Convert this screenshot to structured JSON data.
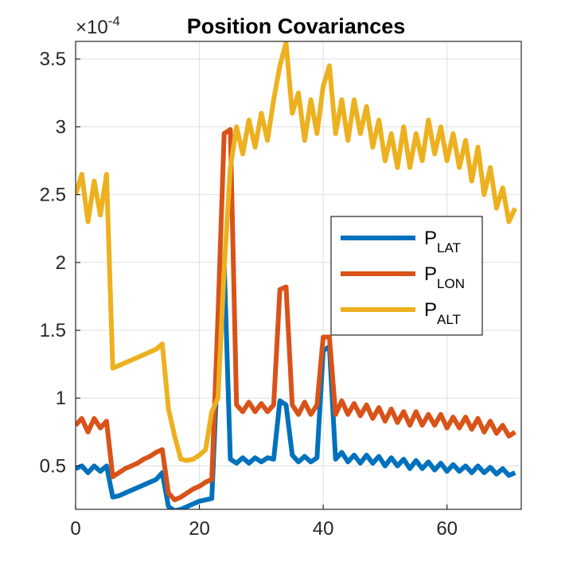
{
  "chart_data": {
    "type": "line",
    "title": "Position Covariances",
    "axis_multiplier": "×10",
    "axis_multiplier_exponent": "-4",
    "x": [
      0,
      1,
      2,
      3,
      4,
      5,
      6,
      7,
      8,
      9,
      10,
      11,
      12,
      13,
      14,
      15,
      16,
      17,
      18,
      19,
      20,
      21,
      22,
      23,
      24,
      25,
      26,
      27,
      28,
      29,
      30,
      31,
      32,
      33,
      34,
      35,
      36,
      37,
      38,
      39,
      40,
      41,
      42,
      43,
      44,
      45,
      46,
      47,
      48,
      49,
      50,
      51,
      52,
      53,
      54,
      55,
      56,
      57,
      58,
      59,
      60,
      61,
      62,
      63,
      64,
      65,
      66,
      67,
      68,
      69,
      70,
      71
    ],
    "series": [
      {
        "name": "P",
        "name_subscript": "LAT",
        "color": "#0072bd",
        "values": [
          0.48,
          0.5,
          0.45,
          0.5,
          0.46,
          0.5,
          0.27,
          0.28,
          0.3,
          0.32,
          0.34,
          0.36,
          0.38,
          0.4,
          0.45,
          0.2,
          0.17,
          0.18,
          0.2,
          0.22,
          0.24,
          0.25,
          0.26,
          1.3,
          2.0,
          0.55,
          0.52,
          0.56,
          0.52,
          0.56,
          0.53,
          0.56,
          0.55,
          0.98,
          0.95,
          0.58,
          0.53,
          0.57,
          0.53,
          0.56,
          1.35,
          1.38,
          0.55,
          0.6,
          0.53,
          0.58,
          0.52,
          0.58,
          0.52,
          0.57,
          0.5,
          0.56,
          0.5,
          0.55,
          0.48,
          0.54,
          0.48,
          0.53,
          0.47,
          0.52,
          0.46,
          0.51,
          0.46,
          0.5,
          0.45,
          0.5,
          0.45,
          0.49,
          0.44,
          0.48,
          0.43,
          0.45
        ]
      },
      {
        "name": "P",
        "name_subscript": "LON",
        "color": "#d95319",
        "values": [
          0.8,
          0.85,
          0.75,
          0.85,
          0.78,
          0.83,
          0.42,
          0.45,
          0.48,
          0.5,
          0.52,
          0.55,
          0.57,
          0.6,
          0.62,
          0.3,
          0.25,
          0.27,
          0.3,
          0.33,
          0.35,
          0.38,
          0.4,
          1.6,
          2.95,
          2.98,
          0.95,
          0.9,
          0.97,
          0.9,
          0.96,
          0.9,
          0.95,
          1.8,
          1.82,
          0.95,
          0.88,
          0.97,
          0.88,
          0.95,
          1.45,
          1.45,
          0.88,
          0.98,
          0.88,
          0.96,
          0.87,
          0.95,
          0.85,
          0.93,
          0.83,
          0.92,
          0.82,
          0.9,
          0.8,
          0.9,
          0.8,
          0.88,
          0.8,
          0.88,
          0.78,
          0.86,
          0.78,
          0.86,
          0.77,
          0.85,
          0.75,
          0.83,
          0.74,
          0.8,
          0.72,
          0.75
        ]
      },
      {
        "name": "P",
        "name_subscript": "ALT",
        "color": "#edb120",
        "values": [
          2.5,
          2.65,
          2.3,
          2.6,
          2.35,
          2.65,
          1.22,
          1.24,
          1.26,
          1.28,
          1.3,
          1.32,
          1.34,
          1.36,
          1.4,
          0.92,
          0.72,
          0.55,
          0.54,
          0.55,
          0.58,
          0.62,
          0.9,
          1.0,
          1.95,
          2.7,
          3.0,
          2.8,
          3.05,
          2.85,
          3.1,
          2.9,
          3.2,
          3.45,
          3.62,
          3.1,
          3.25,
          2.9,
          3.2,
          2.95,
          3.3,
          3.45,
          2.95,
          3.2,
          2.9,
          3.2,
          2.95,
          3.15,
          2.85,
          3.05,
          2.75,
          2.95,
          2.7,
          3.0,
          2.7,
          2.95,
          2.75,
          3.05,
          2.8,
          3.0,
          2.75,
          2.95,
          2.7,
          2.9,
          2.6,
          2.85,
          2.5,
          2.7,
          2.4,
          2.55,
          2.3,
          2.4
        ]
      }
    ],
    "xlim": [
      0,
      72
    ],
    "ylim": [
      0.18,
      3.63
    ],
    "xticks": [
      0,
      20,
      40,
      60
    ],
    "yticks": [
      0.5,
      1,
      1.5,
      2,
      2.5,
      3,
      3.5
    ],
    "grid": true
  }
}
